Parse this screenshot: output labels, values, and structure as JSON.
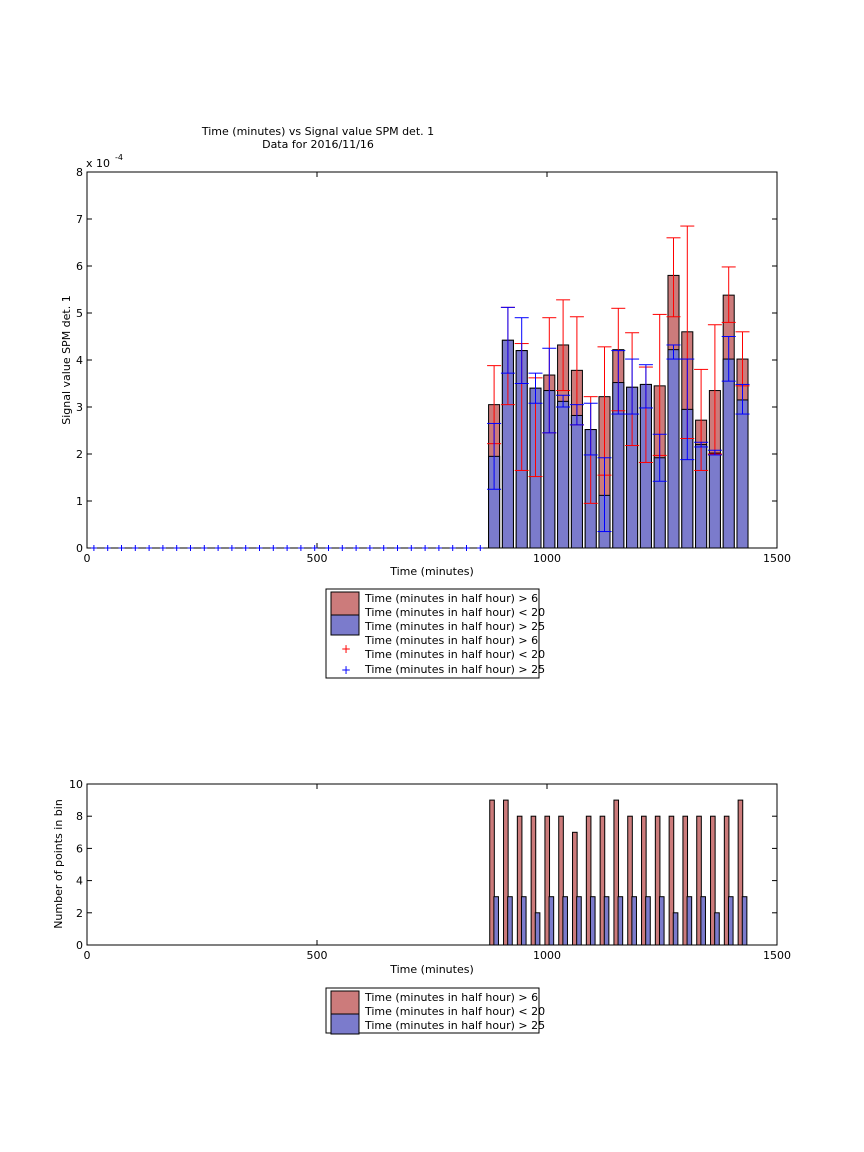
{
  "chart_data": [
    {
      "type": "bar",
      "title": "Time (minutes) vs Signal value SPM det. 1",
      "subtitle": "Data for 2016/11/16",
      "xlabel": "Time (minutes)",
      "ylabel": "Signal value SPM det. 1",
      "exponent_label": "x 10",
      "exponent_power": "-4",
      "xlim": [
        0,
        1500
      ],
      "ylim": [
        0,
        8
      ],
      "x_ticks": [
        "0",
        "500",
        "1000",
        "1500"
      ],
      "y_ticks": [
        "0",
        "1",
        "2",
        "3",
        "4",
        "5",
        "6",
        "7",
        "8"
      ],
      "grid": false,
      "colors": {
        "red_fill": "#cc7b7b",
        "blue_fill": "#7b7bcc",
        "red_err": "#ff0000",
        "blue_err": "#0000ff"
      },
      "empty_markers_x": [
        15,
        45,
        75,
        105,
        135,
        165,
        195,
        225,
        255,
        285,
        315,
        345,
        375,
        405,
        435,
        465,
        495,
        525,
        555,
        585,
        615,
        645,
        675,
        705,
        735,
        765,
        795,
        825,
        855
      ],
      "x": [
        885,
        915,
        945,
        975,
        1005,
        1035,
        1065,
        1095,
        1125,
        1155,
        1185,
        1215,
        1245,
        1275,
        1305,
        1335,
        1365,
        1395,
        1425
      ],
      "series": [
        {
          "name": "Time (minutes in half hour) > 6\nTime (minutes in half hour) < 20",
          "values": [
            3.05,
            4.42,
            4.2,
            3.4,
            3.68,
            4.32,
            3.78,
            2.52,
            3.22,
            4.22,
            3.42,
            3.48,
            3.45,
            5.8,
            4.6,
            2.72,
            3.35,
            5.38,
            4.02
          ],
          "err_low": [
            2.22,
            3.05,
            1.65,
            1.52,
            2.45,
            3.35,
            2.62,
            0.95,
            1.55,
            2.92,
            2.18,
            1.82,
            1.97,
            4.92,
            2.33,
            1.65,
            2.0,
            4.8,
            3.45
          ],
          "err_high": [
            3.88,
            5.12,
            4.35,
            3.62,
            4.9,
            5.28,
            4.92,
            3.22,
            4.28,
            5.1,
            4.58,
            3.85,
            4.97,
            6.6,
            6.85,
            3.8,
            4.75,
            5.98,
            4.6
          ]
        },
        {
          "name": "Time (minutes in half hour) > 25",
          "values": [
            1.95,
            4.42,
            4.2,
            3.4,
            3.35,
            3.12,
            2.82,
            2.52,
            1.12,
            3.52,
            3.42,
            3.48,
            1.92,
            4.22,
            2.95,
            2.2,
            2.02,
            4.02,
            3.15
          ],
          "err_low": [
            1.25,
            3.72,
            3.5,
            3.08,
            2.45,
            3.0,
            2.62,
            1.98,
            0.35,
            2.85,
            2.85,
            2.98,
            1.42,
            4.02,
            1.88,
            2.15,
            1.98,
            3.55,
            2.85
          ],
          "err_high": [
            2.65,
            5.12,
            4.9,
            3.72,
            4.25,
            3.25,
            3.05,
            3.08,
            1.92,
            4.2,
            4.02,
            3.9,
            2.42,
            4.32,
            4.02,
            2.25,
            2.08,
            4.5,
            3.48
          ]
        }
      ],
      "legend": {
        "placement": "below",
        "entries": [
          {
            "marker": "bar-red",
            "label": "Time (minutes in half hour) > 6"
          },
          {
            "marker": "bar-red",
            "label": "Time (minutes in half hour) < 20"
          },
          {
            "marker": "bar-blue",
            "label": "Time (minutes in half hour) > 25"
          },
          {
            "marker": "none",
            "label": "Time (minutes in half hour) > 6"
          },
          {
            "marker": "plus-red",
            "label": "Time (minutes in half hour) < 20"
          },
          {
            "marker": "plus-blue",
            "label": "Time (minutes in half hour) > 25"
          }
        ]
      }
    },
    {
      "type": "bar",
      "xlabel": "Time (minutes)",
      "ylabel": "Number of points in bin",
      "xlim": [
        0,
        1500
      ],
      "ylim": [
        0,
        10
      ],
      "x_ticks": [
        "0",
        "500",
        "1000",
        "1500"
      ],
      "y_ticks": [
        "0",
        "2",
        "4",
        "6",
        "8",
        "10"
      ],
      "grid": false,
      "colors": {
        "red_fill": "#cc7b7b",
        "blue_fill": "#7b7bcc"
      },
      "x": [
        885,
        915,
        945,
        975,
        1005,
        1035,
        1065,
        1095,
        1125,
        1155,
        1185,
        1215,
        1245,
        1275,
        1305,
        1335,
        1365,
        1395,
        1425
      ],
      "series": [
        {
          "name": "Time (minutes in half hour) > 6\nTime (minutes in half hour) < 20",
          "values": [
            9,
            9,
            8,
            8,
            8,
            8,
            7,
            8,
            8,
            9,
            8,
            8,
            8,
            8,
            8,
            8,
            8,
            8,
            9
          ]
        },
        {
          "name": "Time (minutes in half hour) > 25",
          "values": [
            3,
            3,
            3,
            2,
            3,
            3,
            3,
            3,
            3,
            3,
            3,
            3,
            3,
            2,
            3,
            3,
            2,
            3,
            3
          ]
        }
      ],
      "legend": {
        "placement": "below",
        "entries": [
          {
            "marker": "bar-red",
            "label": "Time (minutes in half hour) > 6"
          },
          {
            "marker": "bar-red",
            "label": "Time (minutes in half hour) < 20"
          },
          {
            "marker": "bar-blue",
            "label": "Time (minutes in half hour) > 25"
          }
        ]
      }
    }
  ]
}
